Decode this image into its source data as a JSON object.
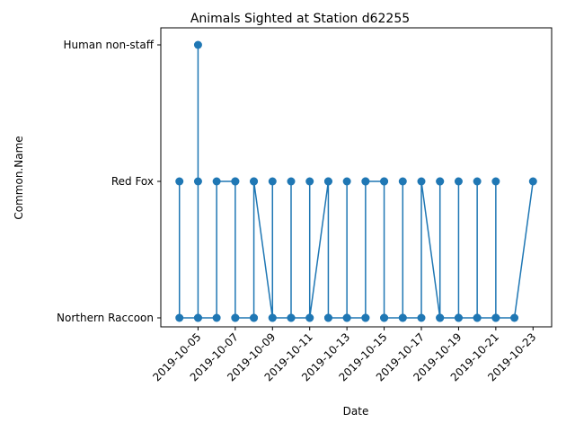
{
  "chart_data": {
    "type": "line",
    "title": "Animals Sighted at Station d62255",
    "xlabel": "Date",
    "ylabel": "Common.Name",
    "categories": [
      "Northern Raccoon",
      "Red Fox",
      "Human non-staff"
    ],
    "x_ticks": [
      "2019-10-05",
      "2019-10-07",
      "2019-10-09",
      "2019-10-11",
      "2019-10-13",
      "2019-10-15",
      "2019-10-17",
      "2019-10-19",
      "2019-10-21",
      "2019-10-23"
    ],
    "xlim": [
      "2019-10-03",
      "2019-10-24"
    ],
    "color": "#1f77b4",
    "grid": false,
    "series": [
      {
        "points": [
          [
            "2019-10-04",
            "Red Fox"
          ],
          [
            "2019-10-04",
            "Northern Raccoon"
          ],
          [
            "2019-10-05",
            "Northern Raccoon"
          ],
          [
            "2019-10-05",
            "Red Fox"
          ],
          [
            "2019-10-05",
            "Human non-staff"
          ],
          [
            "2019-10-05",
            "Northern Raccoon"
          ],
          [
            "2019-10-06",
            "Northern Raccoon"
          ],
          [
            "2019-10-06",
            "Red Fox"
          ],
          [
            "2019-10-07",
            "Red Fox"
          ],
          [
            "2019-10-07",
            "Northern Raccoon"
          ],
          [
            "2019-10-07",
            "Red Fox"
          ],
          [
            "2019-10-07",
            "Northern Raccoon"
          ],
          [
            "2019-10-08",
            "Northern Raccoon"
          ],
          [
            "2019-10-08",
            "Red Fox"
          ],
          [
            "2019-10-08",
            "Northern Raccoon"
          ],
          [
            "2019-10-08",
            "Red Fox"
          ],
          [
            "2019-10-09",
            "Northern Raccoon"
          ],
          [
            "2019-10-09",
            "Red Fox"
          ],
          [
            "2019-10-09",
            "Northern Raccoon"
          ],
          [
            "2019-10-10",
            "Northern Raccoon"
          ],
          [
            "2019-10-10",
            "Red Fox"
          ],
          [
            "2019-10-10",
            "Northern Raccoon"
          ],
          [
            "2019-10-11",
            "Northern Raccoon"
          ],
          [
            "2019-10-11",
            "Red Fox"
          ],
          [
            "2019-10-11",
            "Northern Raccoon"
          ],
          [
            "2019-10-12",
            "Red Fox"
          ],
          [
            "2019-10-12",
            "Northern Raccoon"
          ],
          [
            "2019-10-12",
            "Red Fox"
          ],
          [
            "2019-10-12",
            "Northern Raccoon"
          ],
          [
            "2019-10-13",
            "Northern Raccoon"
          ],
          [
            "2019-10-13",
            "Red Fox"
          ],
          [
            "2019-10-13",
            "Northern Raccoon"
          ],
          [
            "2019-10-14",
            "Northern Raccoon"
          ],
          [
            "2019-10-14",
            "Red Fox"
          ],
          [
            "2019-10-14",
            "Northern Raccoon"
          ],
          [
            "2019-10-14",
            "Red Fox"
          ],
          [
            "2019-10-15",
            "Red Fox"
          ],
          [
            "2019-10-15",
            "Northern Raccoon"
          ],
          [
            "2019-10-15",
            "Red Fox"
          ],
          [
            "2019-10-15",
            "Northern Raccoon"
          ],
          [
            "2019-10-16",
            "Northern Raccoon"
          ],
          [
            "2019-10-16",
            "Red Fox"
          ],
          [
            "2019-10-16",
            "Northern Raccoon"
          ],
          [
            "2019-10-17",
            "Northern Raccoon"
          ],
          [
            "2019-10-17",
            "Red Fox"
          ],
          [
            "2019-10-18",
            "Northern Raccoon"
          ],
          [
            "2019-10-18",
            "Red Fox"
          ],
          [
            "2019-10-18",
            "Northern Raccoon"
          ],
          [
            "2019-10-18",
            "Red Fox"
          ],
          [
            "2019-10-18",
            "Northern Raccoon"
          ],
          [
            "2019-10-19",
            "Northern Raccoon"
          ],
          [
            "2019-10-19",
            "Red Fox"
          ],
          [
            "2019-10-19",
            "Northern Raccoon"
          ],
          [
            "2019-10-20",
            "Northern Raccoon"
          ],
          [
            "2019-10-20",
            "Red Fox"
          ],
          [
            "2019-10-20",
            "Northern Raccoon"
          ],
          [
            "2019-10-21",
            "Northern Raccoon"
          ],
          [
            "2019-10-21",
            "Red Fox"
          ],
          [
            "2019-10-21",
            "Northern Raccoon"
          ],
          [
            "2019-10-22",
            "Northern Raccoon"
          ],
          [
            "2019-10-23",
            "Red Fox"
          ]
        ]
      }
    ]
  }
}
